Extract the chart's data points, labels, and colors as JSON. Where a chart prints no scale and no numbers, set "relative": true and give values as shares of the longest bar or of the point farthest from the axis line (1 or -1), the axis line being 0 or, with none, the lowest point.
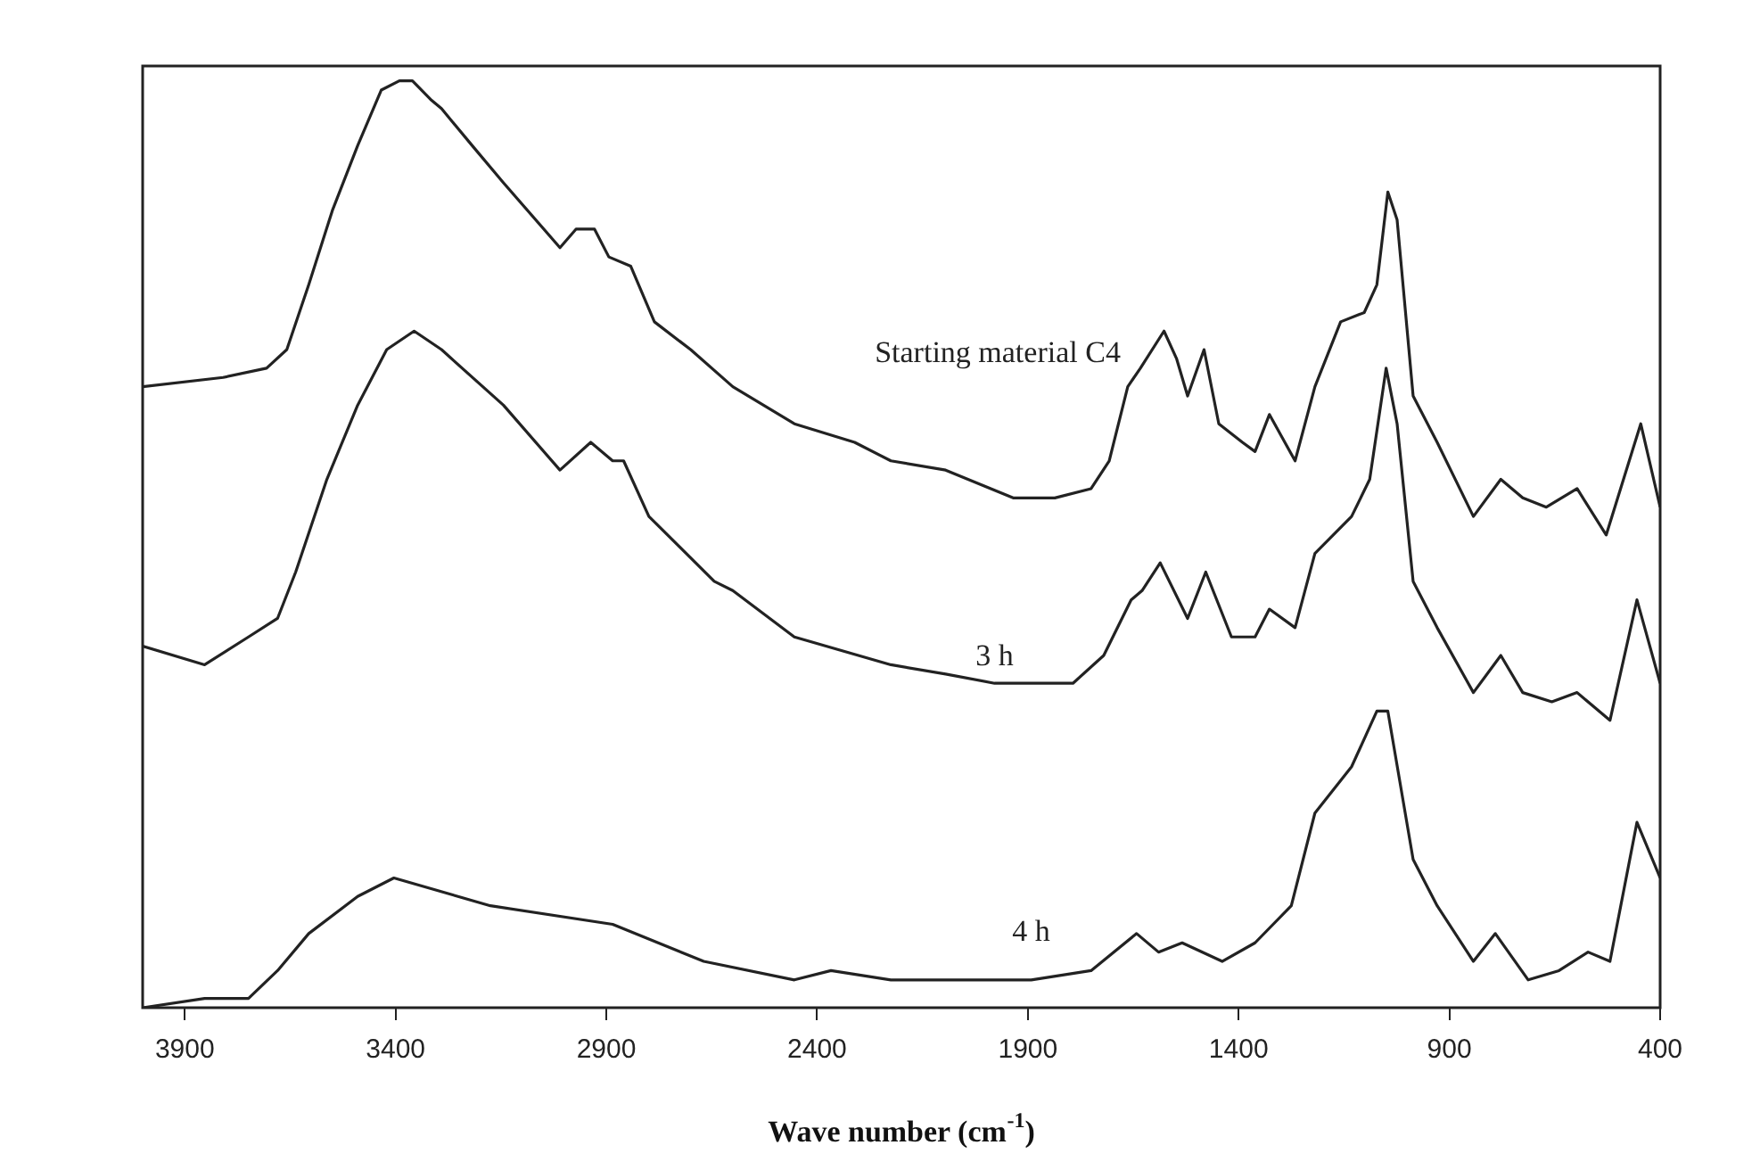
{
  "chart_data": {
    "type": "line",
    "xlabel": "Wave number (cm$^{-1}$)",
    "relative": true,
    "xlim": [
      4000,
      400
    ],
    "xticks": [
      3900,
      3400,
      2900,
      2400,
      1900,
      1400,
      900,
      400
    ],
    "legend": false,
    "grid": false,
    "marker": "none",
    "line_style": "solid",
    "series": [
      {
        "name": "Starting material C4",
        "color": "#222222",
        "x": [
          4000,
          3809,
          3706,
          3658,
          3606,
          3550,
          3490,
          3434,
          3391,
          3360,
          3317,
          3291,
          3218,
          3144,
          3010,
          2972,
          2928,
          2894,
          2842,
          2786,
          2700,
          2600,
          2454,
          2311,
          2225,
          2095,
          1935,
          1836,
          1750,
          1707,
          1663,
          1633,
          1577,
          1547,
          1521,
          1482,
          1447,
          1391,
          1361,
          1327,
          1266,
          1219,
          1158,
          1102,
          1072,
          1046,
          1024,
          986,
          929,
          843,
          778,
          726,
          670,
          597,
          528,
          446,
          400
        ],
        "values": [
          0.67,
          0.68,
          0.69,
          0.71,
          0.78,
          0.86,
          0.93,
          0.99,
          1,
          1,
          0.98,
          0.97,
          0.93,
          0.89,
          0.82,
          0.84,
          0.84,
          0.81,
          0.8,
          0.74,
          0.71,
          0.67,
          0.63,
          0.61,
          0.59,
          0.58,
          0.55,
          0.55,
          0.56,
          0.59,
          0.67,
          0.69,
          0.73,
          0.7,
          0.66,
          0.71,
          0.63,
          0.61,
          0.6,
          0.64,
          0.59,
          0.67,
          0.74,
          0.75,
          0.78,
          0.88,
          0.85,
          0.66,
          0.61,
          0.53,
          0.57,
          0.55,
          0.54,
          0.56,
          0.51,
          0.63,
          0.54
        ]
      },
      {
        "name": "3 h",
        "color": "#222222",
        "x": [
          4000,
          3853,
          3749,
          3680,
          3637,
          3563,
          3490,
          3421,
          3356,
          3291,
          3144,
          3010,
          2937,
          2885,
          2859,
          2799,
          2644,
          2600,
          2454,
          2225,
          2095,
          1979,
          1793,
          1720,
          1655,
          1629,
          1586,
          1521,
          1478,
          1417,
          1361,
          1327,
          1266,
          1219,
          1132,
          1089,
          1050,
          1024,
          986,
          929,
          843,
          778,
          726,
          657,
          597,
          519,
          455,
          400
        ],
        "values": [
          0.39,
          0.37,
          0.4,
          0.42,
          0.47,
          0.57,
          0.65,
          0.71,
          0.73,
          0.71,
          0.65,
          0.58,
          0.61,
          0.59,
          0.59,
          0.53,
          0.46,
          0.45,
          0.4,
          0.37,
          0.36,
          0.35,
          0.35,
          0.38,
          0.44,
          0.45,
          0.48,
          0.42,
          0.47,
          0.4,
          0.4,
          0.43,
          0.41,
          0.49,
          0.53,
          0.57,
          0.69,
          0.63,
          0.46,
          0.41,
          0.34,
          0.38,
          0.34,
          0.33,
          0.34,
          0.31,
          0.44,
          0.35
        ]
      },
      {
        "name": "4 h",
        "color": "#222222",
        "x": [
          4000,
          3853,
          3749,
          3680,
          3606,
          3490,
          3404,
          3175,
          2885,
          2669,
          2454,
          2367,
          2225,
          2095,
          1892,
          1750,
          1642,
          1590,
          1534,
          1439,
          1361,
          1275,
          1219,
          1132,
          1072,
          1046,
          986,
          929,
          843,
          791,
          713,
          640,
          571,
          519,
          455,
          400
        ],
        "values": [
          0,
          0.01,
          0.01,
          0.04,
          0.08,
          0.12,
          0.14,
          0.11,
          0.09,
          0.05,
          0.03,
          0.04,
          0.03,
          0.03,
          0.03,
          0.04,
          0.08,
          0.06,
          0.07,
          0.05,
          0.07,
          0.11,
          0.21,
          0.26,
          0.32,
          0.32,
          0.16,
          0.11,
          0.05,
          0.08,
          0.03,
          0.04,
          0.06,
          0.05,
          0.2,
          0.14
        ]
      }
    ]
  }
}
